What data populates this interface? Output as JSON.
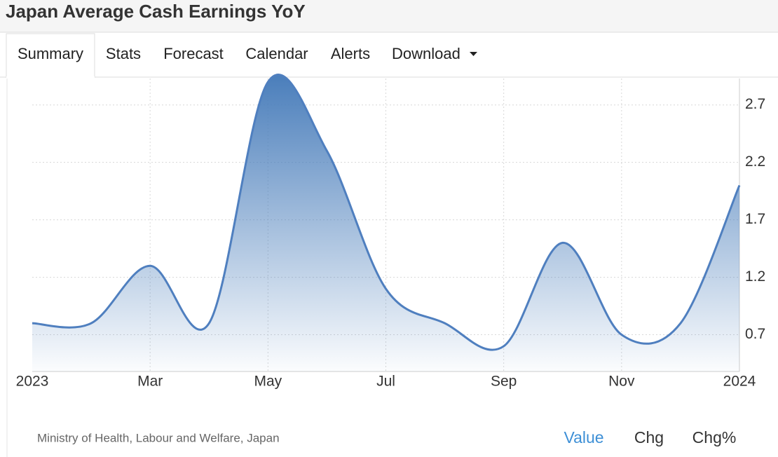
{
  "header": {
    "title": "Japan Average Cash Earnings YoY"
  },
  "tabs": [
    "Summary",
    "Stats",
    "Forecast",
    "Calendar",
    "Alerts",
    "Download"
  ],
  "chart_data": {
    "type": "area",
    "categories": [
      "2023",
      null,
      "Mar",
      null,
      "May",
      null,
      "Jul",
      null,
      "Sep",
      null,
      "Nov",
      null,
      "2024"
    ],
    "series": [
      {
        "name": "Value",
        "color": "#4f7fbf",
        "values": [
          0.8,
          0.8,
          1.3,
          0.8,
          2.9,
          2.3,
          1.1,
          0.8,
          0.6,
          1.5,
          0.7,
          0.8,
          2.0
        ]
      }
    ],
    "ylim": [
      0.38,
      2.93
    ],
    "yticks": [
      0.7,
      1.2,
      1.7,
      2.2,
      2.7
    ],
    "grid": true
  },
  "footer": {
    "source": "Ministry of Health, Labour and Welfare, Japan",
    "buttons": [
      "Value",
      "Chg",
      "Chg%"
    ]
  }
}
